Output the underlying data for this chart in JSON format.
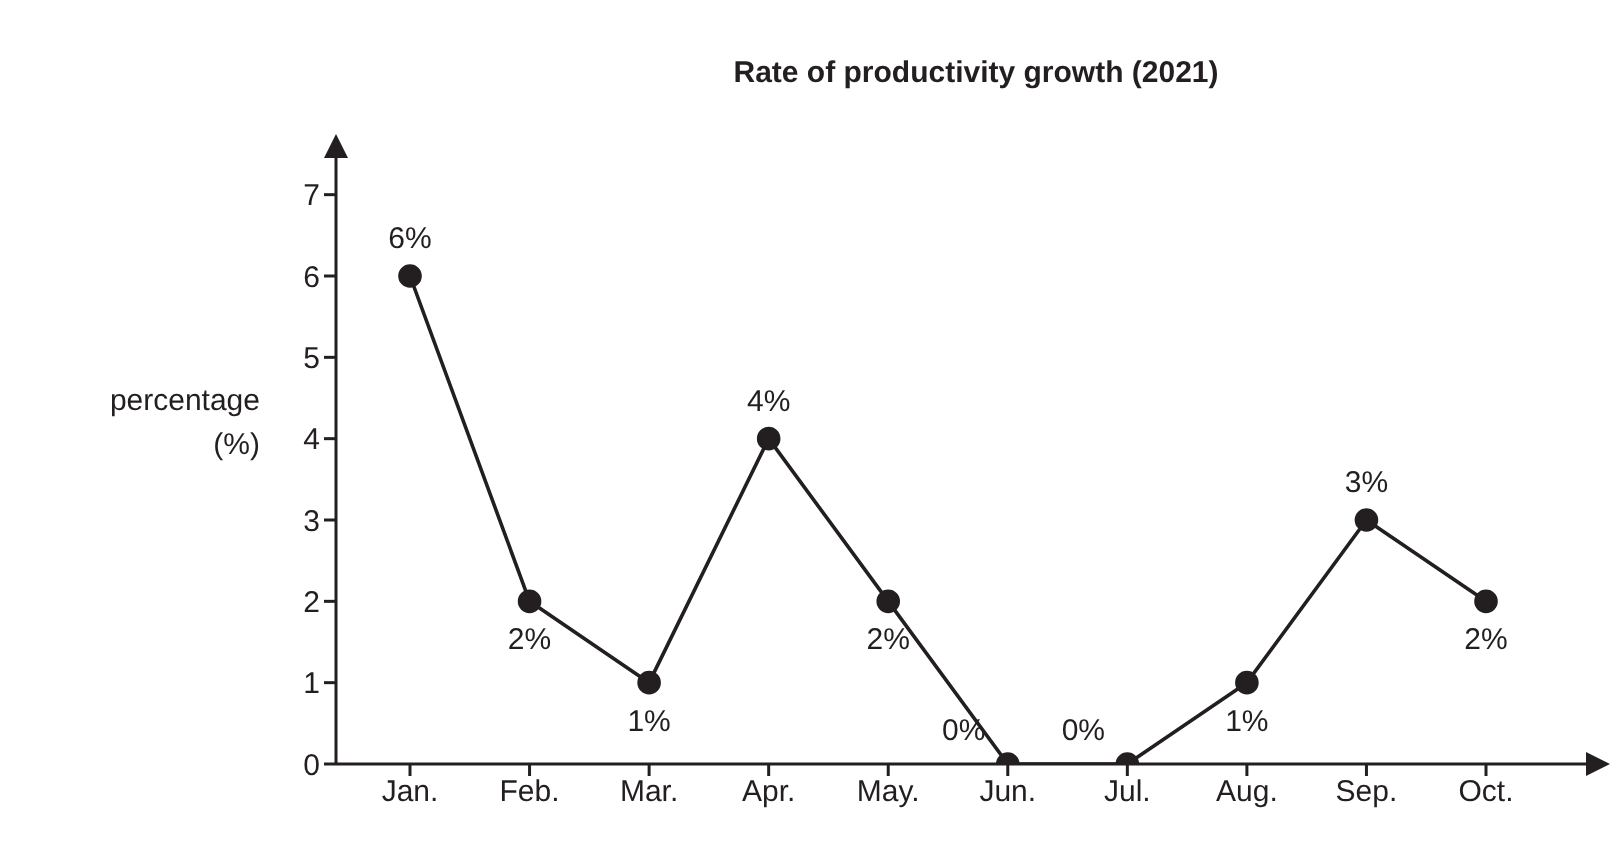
{
  "chart_data": {
    "type": "line",
    "title": "Rate of productivity growth (2021)",
    "ylabel": "percentage (%)",
    "categories": [
      "Jan.",
      "Feb.",
      "Mar.",
      "Apr.",
      "May.",
      "Jun.",
      "Jul.",
      "Aug.",
      "Sep.",
      "Oct."
    ],
    "series": [
      {
        "color": "#231f20",
        "values": [
          6,
          2,
          1,
          4,
          2,
          0,
          0,
          1,
          3,
          2
        ],
        "value_labels": [
          "6%",
          "2%",
          "1%",
          "4%",
          "2%",
          "0%",
          "0%",
          "1%",
          "3%",
          "2%"
        ]
      }
    ],
    "ylim": [
      0,
      7.5
    ],
    "yticks": [
      0,
      1,
      2,
      3,
      4,
      5,
      6,
      7
    ],
    "marker": "circle",
    "line_style": "solid"
  }
}
